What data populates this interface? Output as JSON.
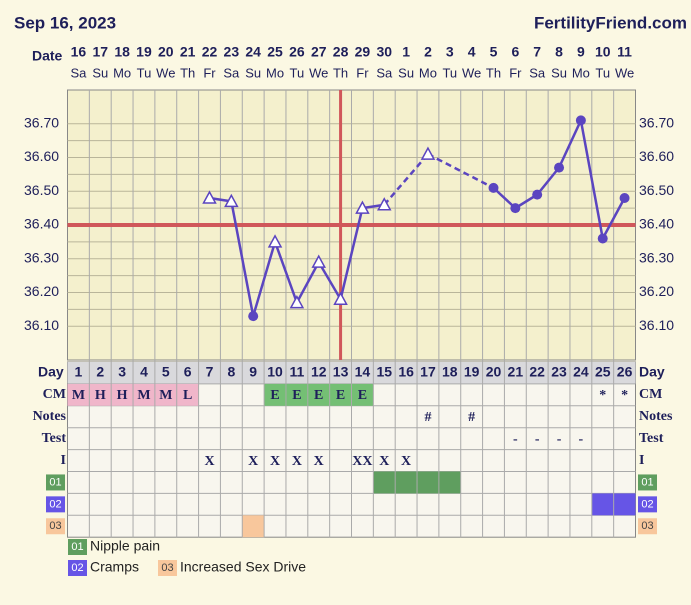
{
  "header": {
    "date": "Sep 16, 2023",
    "site": "FertilityFriend.com"
  },
  "chart_data": {
    "type": "line",
    "date_label": "Date",
    "dates": [
      "16",
      "17",
      "18",
      "19",
      "20",
      "21",
      "22",
      "23",
      "24",
      "25",
      "26",
      "27",
      "28",
      "29",
      "30",
      "1",
      "2",
      "3",
      "4",
      "5",
      "6",
      "7",
      "8",
      "9",
      "10",
      "11"
    ],
    "weekdays": [
      "Sa",
      "Su",
      "Mo",
      "Tu",
      "We",
      "Th",
      "Fr",
      "Sa",
      "Su",
      "Mo",
      "Tu",
      "We",
      "Th",
      "Fr",
      "Sa",
      "Su",
      "Mo",
      "Tu",
      "We",
      "Th",
      "Fr",
      "Sa",
      "Su",
      "Mo",
      "Tu",
      "We"
    ],
    "values": [
      null,
      null,
      null,
      null,
      null,
      null,
      36.48,
      36.47,
      36.13,
      36.35,
      36.17,
      36.29,
      36.18,
      36.45,
      36.46,
      null,
      36.61,
      null,
      null,
      36.51,
      36.45,
      36.49,
      36.57,
      36.71,
      36.36,
      36.48
    ],
    "point_styles": [
      null,
      null,
      null,
      null,
      null,
      null,
      "open-triangle",
      "open-triangle",
      "filled-circle",
      "open-triangle",
      "open-triangle",
      "open-triangle",
      "open-triangle",
      "open-triangle",
      "open-triangle",
      null,
      "open-triangle",
      null,
      null,
      "filled-circle",
      "filled-circle",
      "filled-circle",
      "filled-circle",
      "filled-circle",
      "filled-circle",
      "filled-circle"
    ],
    "gap_style": "dashed",
    "color": "#5b45c0",
    "ylim": [
      36.0,
      36.8
    ],
    "yticks": [
      {
        "value": 36.1,
        "label": "36.10"
      },
      {
        "value": 36.2,
        "label": "36.20"
      },
      {
        "value": 36.3,
        "label": "36.30"
      },
      {
        "value": 36.4,
        "label": "36.40"
      },
      {
        "value": 36.5,
        "label": "36.50"
      },
      {
        "value": 36.6,
        "label": "36.60"
      },
      {
        "value": 36.7,
        "label": "36.70"
      }
    ],
    "grid": true,
    "coverline": 36.4,
    "ovulation_day": 13,
    "marker_line_color": "#d0575a"
  },
  "table": {
    "day_label": "Day",
    "days": [
      1,
      2,
      3,
      4,
      5,
      6,
      7,
      8,
      9,
      10,
      11,
      12,
      13,
      14,
      15,
      16,
      17,
      18,
      19,
      20,
      21,
      22,
      23,
      24,
      25,
      26
    ],
    "rows": [
      {
        "label": "CM",
        "cells": [
          "M",
          "H",
          "H",
          "M",
          "M",
          "L",
          null,
          null,
          null,
          "E",
          "E",
          "E",
          "E",
          "E",
          null,
          null,
          null,
          null,
          null,
          null,
          null,
          null,
          null,
          null,
          "*",
          "*"
        ]
      },
      {
        "label": "Notes",
        "cells": [
          null,
          null,
          null,
          null,
          null,
          null,
          null,
          null,
          null,
          null,
          null,
          null,
          null,
          null,
          null,
          null,
          "#",
          null,
          "#",
          null,
          null,
          null,
          null,
          null,
          null,
          null
        ]
      },
      {
        "label": "Test",
        "cells": [
          null,
          null,
          null,
          null,
          null,
          null,
          null,
          null,
          null,
          null,
          null,
          null,
          null,
          null,
          null,
          null,
          null,
          null,
          null,
          null,
          "-",
          "-",
          "-",
          "-",
          null,
          null
        ]
      },
      {
        "label": "I",
        "cells": [
          null,
          null,
          null,
          null,
          null,
          null,
          "X",
          null,
          "X",
          "X",
          "X",
          "X",
          null,
          "XX",
          "X",
          "X",
          null,
          null,
          null,
          null,
          null,
          null,
          null,
          null,
          null,
          null
        ]
      }
    ],
    "symptoms": [
      {
        "code": "01",
        "name": "Nipple pain",
        "color": "#5f9e5f",
        "days": [
          15,
          16,
          17,
          18
        ]
      },
      {
        "code": "02",
        "name": "Cramps",
        "color": "#6655e6",
        "days": [
          25,
          26
        ]
      },
      {
        "code": "03",
        "name": "Increased Sex Drive",
        "color": "#f8c79c",
        "days": [
          9
        ]
      }
    ]
  }
}
